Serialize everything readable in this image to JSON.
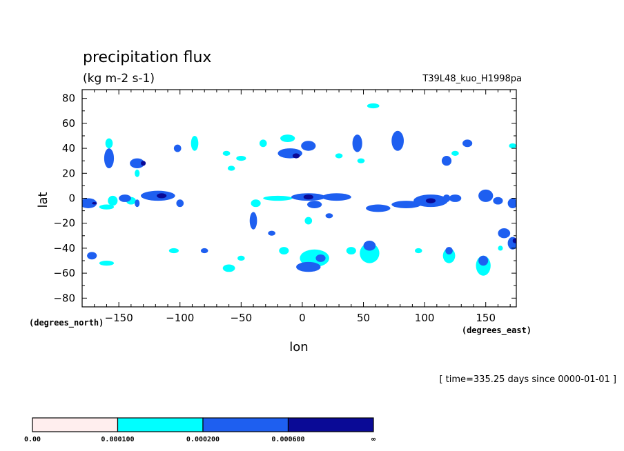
{
  "chart_data": {
    "type": "heatmap",
    "title": "precipitation flux",
    "units": "(kg m-2 s-1)",
    "experiment": "T39L48_kuo_H1998pa",
    "xlabel": "lon",
    "ylabel": "lat",
    "x_units_note": "(degrees_east)",
    "y_units_note": "(degrees_north)",
    "time_label": "[ time=335.25 days since 0000-01-01 ]",
    "xlim": [
      -180,
      175
    ],
    "ylim": [
      -87,
      87
    ],
    "xticks": [
      -150,
      -100,
      -50,
      0,
      50,
      100,
      150
    ],
    "xtick_labels": [
      "−150",
      "−100",
      "−50",
      "0",
      "50",
      "100",
      "150"
    ],
    "yticks": [
      80,
      60,
      40,
      20,
      0,
      -20,
      -40,
      -60,
      -80
    ],
    "ytick_labels": [
      "80",
      "60",
      "40",
      "20",
      "0",
      "−20",
      "−40",
      "−60",
      "−80"
    ],
    "grid": false,
    "colorbar": {
      "levels": [
        0.0,
        0.0001,
        0.0002,
        0.0006
      ],
      "labels": [
        "0.00",
        "0.000100",
        "0.000200",
        "0.000600",
        "∞"
      ],
      "colors": [
        "#ffeeee",
        "#00ffff",
        "#1e5ff0",
        "#0a0a96"
      ]
    },
    "features": [
      {
        "lon": -175,
        "lat": -4,
        "rx": 7,
        "ry": 4,
        "level": 2
      },
      {
        "lon": -160,
        "lat": -7,
        "rx": 6,
        "ry": 2,
        "level": 1
      },
      {
        "lon": -158,
        "lat": 32,
        "rx": 4,
        "ry": 8,
        "level": 2
      },
      {
        "lon": -158,
        "lat": 44,
        "rx": 3,
        "ry": 4,
        "level": 1
      },
      {
        "lon": -155,
        "lat": -2,
        "rx": 4,
        "ry": 4,
        "level": 1
      },
      {
        "lon": -145,
        "lat": 0,
        "rx": 5,
        "ry": 3,
        "level": 2
      },
      {
        "lon": -135,
        "lat": 28,
        "rx": 6,
        "ry": 4,
        "level": 2
      },
      {
        "lon": -135,
        "lat": -4,
        "rx": 2,
        "ry": 3,
        "level": 2
      },
      {
        "lon": -135,
        "lat": 20,
        "rx": 2,
        "ry": 3,
        "level": 1
      },
      {
        "lon": -118,
        "lat": 2,
        "rx": 14,
        "ry": 4,
        "level": 2
      },
      {
        "lon": -115,
        "lat": 2,
        "rx": 4,
        "ry": 2,
        "level": 3
      },
      {
        "lon": -102,
        "lat": 40,
        "rx": 3,
        "ry": 3,
        "level": 2
      },
      {
        "lon": -100,
        "lat": -4,
        "rx": 3,
        "ry": 3,
        "level": 2
      },
      {
        "lon": -88,
        "lat": 44,
        "rx": 3,
        "ry": 6,
        "level": 1
      },
      {
        "lon": -62,
        "lat": 36,
        "rx": 3,
        "ry": 2,
        "level": 1
      },
      {
        "lon": -58,
        "lat": 24,
        "rx": 3,
        "ry": 2,
        "level": 1
      },
      {
        "lon": -50,
        "lat": 32,
        "rx": 4,
        "ry": 2,
        "level": 1
      },
      {
        "lon": -40,
        "lat": -18,
        "rx": 3,
        "ry": 7,
        "level": 2
      },
      {
        "lon": -38,
        "lat": -4,
        "rx": 4,
        "ry": 3,
        "level": 1
      },
      {
        "lon": -25,
        "lat": -28,
        "rx": 3,
        "ry": 2,
        "level": 2
      },
      {
        "lon": -32,
        "lat": 44,
        "rx": 3,
        "ry": 3,
        "level": 1
      },
      {
        "lon": -12,
        "lat": 48,
        "rx": 6,
        "ry": 3,
        "level": 1
      },
      {
        "lon": -10,
        "lat": 36,
        "rx": 10,
        "ry": 4,
        "level": 2
      },
      {
        "lon": -5,
        "lat": 34,
        "rx": 3,
        "ry": 2,
        "level": 3
      },
      {
        "lon": 5,
        "lat": 42,
        "rx": 6,
        "ry": 4,
        "level": 2
      },
      {
        "lon": -20,
        "lat": 0,
        "rx": 12,
        "ry": 2,
        "level": 1
      },
      {
        "lon": 5,
        "lat": 1,
        "rx": 14,
        "ry": 3,
        "level": 2
      },
      {
        "lon": 5,
        "lat": 1,
        "rx": 4,
        "ry": 2,
        "level": 3
      },
      {
        "lon": 28,
        "lat": 1,
        "rx": 12,
        "ry": 3,
        "level": 2
      },
      {
        "lon": 10,
        "lat": -5,
        "rx": 6,
        "ry": 3,
        "level": 2
      },
      {
        "lon": 22,
        "lat": -14,
        "rx": 3,
        "ry": 2,
        "level": 2
      },
      {
        "lon": 5,
        "lat": -18,
        "rx": 3,
        "ry": 3,
        "level": 1
      },
      {
        "lon": 30,
        "lat": 34,
        "rx": 3,
        "ry": 2,
        "level": 1
      },
      {
        "lon": 45,
        "lat": 44,
        "rx": 4,
        "ry": 7,
        "level": 2
      },
      {
        "lon": 48,
        "lat": 30,
        "rx": 3,
        "ry": 2,
        "level": 1
      },
      {
        "lon": 58,
        "lat": 74,
        "rx": 5,
        "ry": 2,
        "level": 1
      },
      {
        "lon": 78,
        "lat": 46,
        "rx": 5,
        "ry": 8,
        "level": 2
      },
      {
        "lon": 62,
        "lat": -8,
        "rx": 10,
        "ry": 3,
        "level": 2
      },
      {
        "lon": 85,
        "lat": -5,
        "rx": 12,
        "ry": 3,
        "level": 2
      },
      {
        "lon": 105,
        "lat": -2,
        "rx": 14,
        "ry": 5,
        "level": 2
      },
      {
        "lon": 105,
        "lat": -2,
        "rx": 4,
        "ry": 2,
        "level": 3
      },
      {
        "lon": 118,
        "lat": 0,
        "rx": 3,
        "ry": 3,
        "level": 2
      },
      {
        "lon": 125,
        "lat": 0,
        "rx": 5,
        "ry": 3,
        "level": 2
      },
      {
        "lon": 150,
        "lat": 2,
        "rx": 6,
        "ry": 5,
        "level": 2
      },
      {
        "lon": 160,
        "lat": -2,
        "rx": 4,
        "ry": 3,
        "level": 2
      },
      {
        "lon": 172,
        "lat": -4,
        "rx": 4,
        "ry": 4,
        "level": 2
      },
      {
        "lon": 118,
        "lat": 30,
        "rx": 4,
        "ry": 4,
        "level": 2
      },
      {
        "lon": 125,
        "lat": 36,
        "rx": 3,
        "ry": 2,
        "level": 1
      },
      {
        "lon": 135,
        "lat": 44,
        "rx": 4,
        "ry": 3,
        "level": 2
      },
      {
        "lon": 172,
        "lat": 42,
        "rx": 3,
        "ry": 2,
        "level": 1
      },
      {
        "lon": -172,
        "lat": -46,
        "rx": 4,
        "ry": 3,
        "level": 2
      },
      {
        "lon": -160,
        "lat": -52,
        "rx": 6,
        "ry": 2,
        "level": 1
      },
      {
        "lon": -140,
        "lat": -2,
        "rx": 4,
        "ry": 3,
        "level": 1
      },
      {
        "lon": -105,
        "lat": -42,
        "rx": 4,
        "ry": 2,
        "level": 1
      },
      {
        "lon": -80,
        "lat": -42,
        "rx": 3,
        "ry": 2,
        "level": 2
      },
      {
        "lon": -60,
        "lat": -56,
        "rx": 5,
        "ry": 3,
        "level": 1
      },
      {
        "lon": -50,
        "lat": -48,
        "rx": 3,
        "ry": 2,
        "level": 1
      },
      {
        "lon": -15,
        "lat": -42,
        "rx": 4,
        "ry": 3,
        "level": 1
      },
      {
        "lon": 10,
        "lat": -48,
        "rx": 12,
        "ry": 7,
        "level": 1
      },
      {
        "lon": 5,
        "lat": -55,
        "rx": 10,
        "ry": 4,
        "level": 2
      },
      {
        "lon": 15,
        "lat": -48,
        "rx": 4,
        "ry": 3,
        "level": 2
      },
      {
        "lon": 40,
        "lat": -42,
        "rx": 4,
        "ry": 3,
        "level": 1
      },
      {
        "lon": 55,
        "lat": -44,
        "rx": 8,
        "ry": 8,
        "level": 1
      },
      {
        "lon": 55,
        "lat": -38,
        "rx": 5,
        "ry": 4,
        "level": 2
      },
      {
        "lon": 95,
        "lat": -42,
        "rx": 3,
        "ry": 2,
        "level": 1
      },
      {
        "lon": 120,
        "lat": -46,
        "rx": 5,
        "ry": 6,
        "level": 1
      },
      {
        "lon": 120,
        "lat": -42,
        "rx": 3,
        "ry": 3,
        "level": 2
      },
      {
        "lon": 148,
        "lat": -54,
        "rx": 6,
        "ry": 8,
        "level": 1
      },
      {
        "lon": 148,
        "lat": -50,
        "rx": 4,
        "ry": 4,
        "level": 2
      },
      {
        "lon": 165,
        "lat": -28,
        "rx": 5,
        "ry": 4,
        "level": 2
      },
      {
        "lon": 172,
        "lat": -36,
        "rx": 4,
        "ry": 5,
        "level": 2
      },
      {
        "lon": 174,
        "lat": -34,
        "rx": 2,
        "ry": 2,
        "level": 3
      },
      {
        "lon": 162,
        "lat": -40,
        "rx": 2,
        "ry": 2,
        "level": 1
      },
      {
        "lon": -170,
        "lat": -4,
        "rx": 2,
        "ry": 1,
        "level": 3
      },
      {
        "lon": -130,
        "lat": 28,
        "rx": 2,
        "ry": 2,
        "level": 3
      }
    ]
  }
}
